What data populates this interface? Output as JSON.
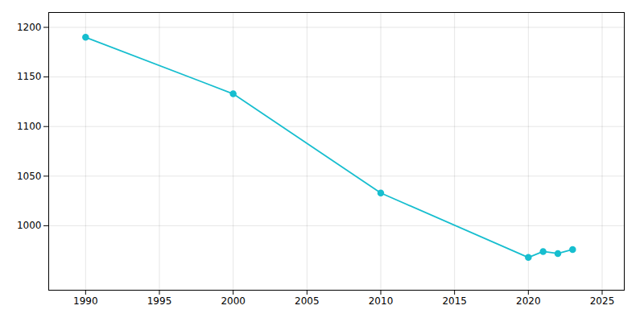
{
  "chart_data": {
    "type": "line",
    "x": [
      1990,
      2000,
      2010,
      2020,
      2021,
      2022,
      2023
    ],
    "values": [
      1190,
      1133,
      1033,
      968,
      974,
      972,
      976
    ],
    "color": "#17becf",
    "marker": "circle",
    "xlim": [
      1987.5,
      2026.5
    ],
    "ylim": [
      935,
      1215
    ],
    "xticks": [
      1990,
      1995,
      2000,
      2005,
      2010,
      2015,
      2020,
      2025
    ],
    "yticks": [
      1000,
      1050,
      1100,
      1150,
      1200
    ],
    "grid": true
  }
}
